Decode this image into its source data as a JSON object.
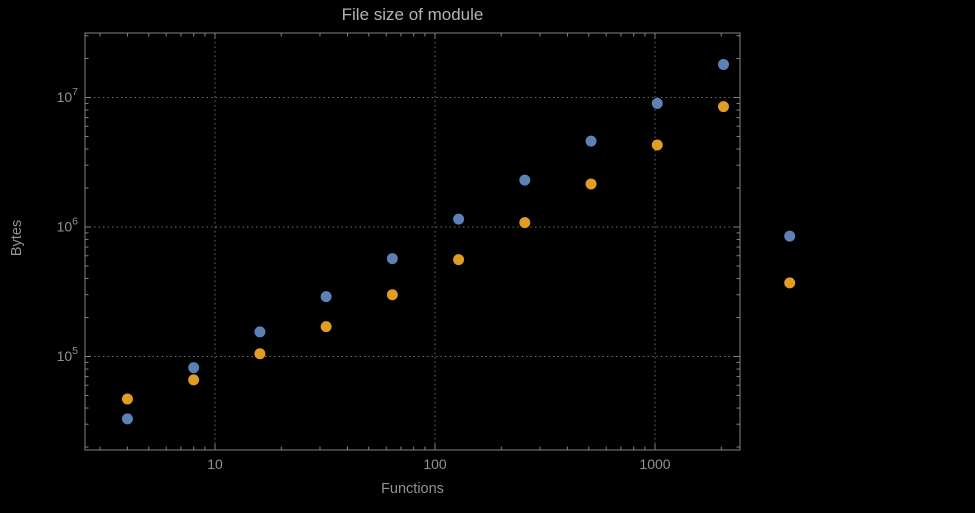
{
  "colors": {
    "background": "#000000",
    "title": "#b3b3b3",
    "axis_text": "#929292",
    "frame": "#828282",
    "grid": "#6a6a6a",
    "series_blue": "#5e81b5",
    "series_orange": "#e19c24"
  },
  "chart_data": {
    "type": "scatter",
    "title": "File size of module",
    "xlabel": "Functions",
    "ylabel": "Bytes",
    "x_scale": "log",
    "y_scale": "log",
    "grid": true,
    "legend": "none",
    "x_ticks": [
      10,
      100,
      1000
    ],
    "x_tick_labels": [
      "10",
      "100",
      "1000"
    ],
    "y_ticks": [
      100000,
      1000000,
      10000000
    ],
    "y_tick_labels": [
      "10^5",
      "10^6",
      "10^7"
    ],
    "xlim": [
      2.6,
      2400
    ],
    "ylim": [
      19000,
      31000000
    ],
    "x": [
      4,
      8,
      16,
      32,
      64,
      128,
      256,
      512,
      1024,
      2048,
      4096
    ],
    "series": [
      {
        "name": "series-1-blue",
        "color": "#5e81b5",
        "values": [
          33000,
          82000,
          155000,
          290000,
          570000,
          1150000,
          2300000,
          4600000,
          9000000,
          18000000,
          850000
        ]
      },
      {
        "name": "series-2-orange",
        "color": "#e19c24",
        "values": [
          47000,
          66000,
          105000,
          170000,
          300000,
          560000,
          1080000,
          2150000,
          4300000,
          8500000,
          370000
        ]
      }
    ]
  }
}
